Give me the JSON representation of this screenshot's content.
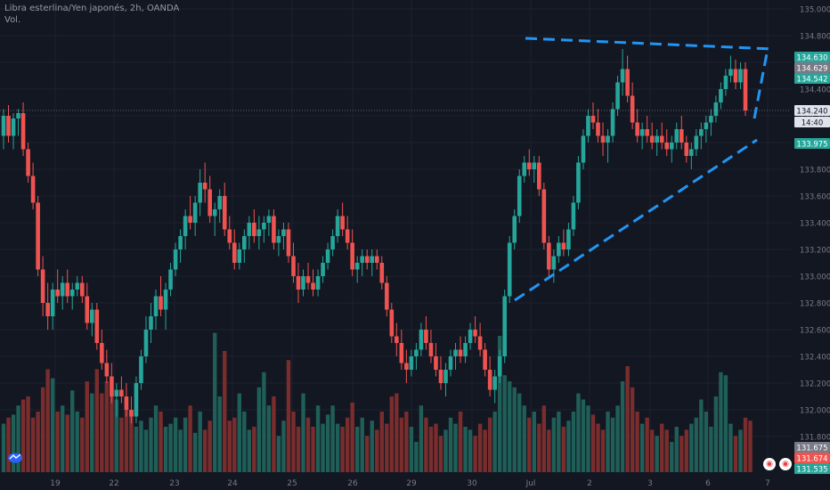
{
  "header": {
    "title": "Libra esterlina/Yen japonés, 2h, OANDA",
    "volume_label": "Vol."
  },
  "badges": {
    "last_price": "134.240",
    "countdown": "14:40"
  },
  "alert_icons": [
    "bell-alert-icon",
    "bell-alert-icon"
  ],
  "colors": {
    "background": "#131722",
    "up": "#26a69a",
    "down": "#ef5350",
    "trendline": "#2196f3"
  },
  "chart_data": {
    "type": "candlestick",
    "title": "Libra esterlina/Yen japonés, 2h, OANDA",
    "y_ticks": [
      "135.000",
      "134.800",
      "134.600",
      "134.400",
      "134.200",
      "134.000",
      "133.800",
      "133.600",
      "133.400",
      "133.200",
      "133.000",
      "132.800",
      "132.600",
      "132.400",
      "132.200",
      "132.000",
      "131.800"
    ],
    "x_ticks": [
      "19",
      "22",
      "23",
      "24",
      "25",
      "26",
      "29",
      "30",
      "Jul",
      "2",
      "3",
      "6",
      "7"
    ],
    "ylim": [
      131.5,
      135.05
    ],
    "price_labels": [
      {
        "value": 134.63,
        "text": "134.630",
        "color": "#26a69a"
      },
      {
        "value": 134.629,
        "text": "134.629",
        "color": "#787b86"
      },
      {
        "value": 134.542,
        "text": "134.542",
        "color": "#26a69a"
      },
      {
        "value": 133.975,
        "text": "133.975",
        "color": "#26a69a"
      },
      {
        "value": 131.675,
        "text": "131.675",
        "color": "#787b86"
      },
      {
        "value": 131.674,
        "text": "131.674",
        "color": "#ef5350"
      },
      {
        "value": 131.535,
        "text": "131.535",
        "color": "#26a69a"
      }
    ],
    "current_price": 134.24,
    "trendlines": [
      {
        "from": [
          "Jul",
          134.78
        ],
        "to": [
          "7",
          134.7
        ],
        "style": "dashed"
      },
      {
        "from": [
          "30",
          132.82
        ],
        "to": [
          "7",
          134.02
        ],
        "style": "dashed"
      },
      {
        "from": [
          "6",
          134.18
        ],
        "to": [
          "7",
          134.7
        ],
        "style": "dashed"
      }
    ],
    "candles": [
      [
        134.05,
        134.25,
        133.95,
        134.2
      ],
      [
        134.2,
        134.28,
        134.0,
        134.05
      ],
      [
        134.05,
        134.22,
        133.95,
        134.18
      ],
      [
        134.18,
        134.25,
        134.05,
        134.22
      ],
      [
        134.22,
        134.3,
        133.9,
        133.95
      ],
      [
        133.95,
        134.0,
        133.7,
        133.75
      ],
      [
        133.75,
        133.85,
        133.5,
        133.55
      ],
      [
        133.55,
        133.6,
        133.0,
        133.05
      ],
      [
        133.05,
        133.15,
        132.7,
        132.8
      ],
      [
        132.8,
        132.95,
        132.6,
        132.7
      ],
      [
        132.7,
        132.95,
        132.6,
        132.9
      ],
      [
        132.9,
        133.05,
        132.8,
        132.85
      ],
      [
        132.85,
        133.0,
        132.75,
        132.95
      ],
      [
        132.95,
        133.05,
        132.8,
        132.85
      ],
      [
        132.85,
        132.95,
        132.75,
        132.9
      ],
      [
        132.9,
        133.0,
        132.85,
        132.95
      ],
      [
        132.95,
        133.0,
        132.8,
        132.85
      ],
      [
        132.85,
        132.95,
        132.6,
        132.65
      ],
      [
        132.65,
        132.8,
        132.55,
        132.75
      ],
      [
        132.75,
        132.8,
        132.45,
        132.5
      ],
      [
        132.5,
        132.6,
        132.3,
        132.35
      ],
      [
        132.35,
        132.45,
        132.2,
        132.25
      ],
      [
        132.25,
        132.35,
        132.05,
        132.1
      ],
      [
        132.1,
        132.2,
        131.95,
        132.15
      ],
      [
        132.15,
        132.25,
        132.05,
        132.1
      ],
      [
        132.1,
        132.2,
        131.95,
        132.0
      ],
      [
        132.0,
        132.1,
        131.9,
        131.95
      ],
      [
        131.95,
        132.25,
        131.9,
        132.2
      ],
      [
        132.2,
        132.45,
        132.15,
        132.4
      ],
      [
        132.4,
        132.7,
        132.35,
        132.6
      ],
      [
        132.6,
        132.8,
        132.5,
        132.7
      ],
      [
        132.7,
        132.9,
        132.6,
        132.85
      ],
      [
        132.85,
        133.0,
        132.7,
        132.75
      ],
      [
        132.75,
        132.95,
        132.6,
        132.9
      ],
      [
        132.9,
        133.1,
        132.85,
        133.05
      ],
      [
        133.05,
        133.25,
        133.0,
        133.2
      ],
      [
        133.2,
        133.35,
        133.1,
        133.3
      ],
      [
        133.3,
        133.5,
        133.2,
        133.45
      ],
      [
        133.45,
        133.6,
        133.35,
        133.4
      ],
      [
        133.4,
        133.6,
        133.3,
        133.55
      ],
      [
        133.55,
        133.8,
        133.45,
        133.7
      ],
      [
        133.7,
        133.85,
        133.55,
        133.65
      ],
      [
        133.65,
        133.75,
        133.4,
        133.45
      ],
      [
        133.45,
        133.55,
        133.3,
        133.5
      ],
      [
        133.5,
        133.65,
        133.4,
        133.6
      ],
      [
        133.6,
        133.7,
        133.3,
        133.35
      ],
      [
        133.35,
        133.45,
        133.2,
        133.25
      ],
      [
        133.25,
        133.35,
        133.05,
        133.1
      ],
      [
        133.1,
        133.25,
        133.05,
        133.2
      ],
      [
        133.2,
        133.35,
        133.1,
        133.3
      ],
      [
        133.3,
        133.45,
        133.2,
        133.4
      ],
      [
        133.4,
        133.5,
        133.25,
        133.3
      ],
      [
        133.3,
        133.45,
        133.2,
        133.35
      ],
      [
        133.35,
        133.45,
        133.25,
        133.4
      ],
      [
        133.4,
        133.5,
        133.3,
        133.45
      ],
      [
        133.45,
        133.5,
        133.2,
        133.25
      ],
      [
        133.25,
        133.35,
        133.15,
        133.3
      ],
      [
        133.3,
        133.4,
        133.2,
        133.35
      ],
      [
        133.35,
        133.4,
        133.1,
        133.15
      ],
      [
        133.15,
        133.25,
        132.95,
        133.0
      ],
      [
        133.0,
        133.1,
        132.8,
        132.9
      ],
      [
        132.9,
        133.05,
        132.85,
        133.0
      ],
      [
        133.0,
        133.1,
        132.9,
        132.95
      ],
      [
        132.95,
        133.05,
        132.85,
        132.9
      ],
      [
        132.9,
        133.05,
        132.85,
        133.0
      ],
      [
        133.0,
        133.15,
        132.95,
        133.1
      ],
      [
        133.1,
        133.25,
        133.05,
        133.2
      ],
      [
        133.2,
        133.35,
        133.15,
        133.3
      ],
      [
        133.3,
        133.5,
        133.25,
        133.45
      ],
      [
        133.45,
        133.55,
        133.3,
        133.35
      ],
      [
        133.35,
        133.45,
        133.2,
        133.25
      ],
      [
        133.25,
        133.35,
        133.0,
        133.05
      ],
      [
        133.05,
        133.15,
        132.95,
        133.1
      ],
      [
        133.1,
        133.2,
        133.0,
        133.15
      ],
      [
        133.15,
        133.2,
        133.05,
        133.1
      ],
      [
        133.1,
        133.2,
        133.0,
        133.15
      ],
      [
        133.15,
        133.2,
        133.05,
        133.1
      ],
      [
        133.1,
        133.15,
        132.9,
        132.95
      ],
      [
        132.95,
        133.0,
        132.7,
        132.75
      ],
      [
        132.75,
        132.8,
        132.5,
        132.55
      ],
      [
        132.55,
        132.65,
        132.4,
        132.5
      ],
      [
        132.5,
        132.6,
        132.3,
        132.35
      ],
      [
        132.35,
        132.45,
        132.2,
        132.3
      ],
      [
        132.3,
        132.45,
        132.25,
        132.4
      ],
      [
        132.4,
        132.5,
        132.3,
        132.45
      ],
      [
        132.45,
        132.65,
        132.4,
        132.6
      ],
      [
        132.6,
        132.7,
        132.45,
        132.5
      ],
      [
        132.5,
        132.6,
        132.35,
        132.4
      ],
      [
        132.4,
        132.5,
        132.25,
        132.3
      ],
      [
        132.3,
        132.4,
        132.15,
        132.2
      ],
      [
        132.2,
        132.35,
        132.1,
        132.3
      ],
      [
        132.3,
        132.45,
        132.25,
        132.4
      ],
      [
        132.4,
        132.5,
        132.3,
        132.45
      ],
      [
        132.45,
        132.55,
        132.35,
        132.4
      ],
      [
        132.4,
        132.55,
        132.35,
        132.5
      ],
      [
        132.5,
        132.65,
        132.45,
        132.6
      ],
      [
        132.6,
        132.7,
        132.5,
        132.55
      ],
      [
        132.55,
        132.65,
        132.4,
        132.45
      ],
      [
        132.45,
        132.5,
        132.25,
        132.3
      ],
      [
        132.3,
        132.4,
        132.1,
        132.15
      ],
      [
        132.15,
        132.3,
        132.05,
        132.25
      ],
      [
        132.25,
        132.45,
        132.2,
        132.4
      ],
      [
        132.4,
        132.9,
        132.35,
        132.85
      ],
      [
        132.85,
        133.3,
        132.8,
        133.25
      ],
      [
        133.25,
        133.5,
        133.2,
        133.45
      ],
      [
        133.45,
        133.8,
        133.4,
        133.75
      ],
      [
        133.75,
        133.9,
        133.7,
        133.85
      ],
      [
        133.85,
        133.95,
        133.75,
        133.8
      ],
      [
        133.8,
        133.9,
        133.7,
        133.85
      ],
      [
        133.85,
        133.9,
        133.6,
        133.65
      ],
      [
        133.65,
        133.7,
        133.2,
        133.25
      ],
      [
        133.25,
        133.3,
        133.0,
        133.05
      ],
      [
        133.05,
        133.2,
        132.95,
        133.15
      ],
      [
        133.15,
        133.3,
        133.1,
        133.25
      ],
      [
        133.25,
        133.35,
        133.15,
        133.2
      ],
      [
        133.2,
        133.4,
        133.15,
        133.35
      ],
      [
        133.35,
        133.6,
        133.3,
        133.55
      ],
      [
        133.55,
        133.9,
        133.5,
        133.85
      ],
      [
        133.85,
        134.1,
        133.8,
        134.05
      ],
      [
        134.05,
        134.25,
        134.0,
        134.2
      ],
      [
        134.2,
        134.3,
        134.1,
        134.15
      ],
      [
        134.15,
        134.25,
        134.0,
        134.05
      ],
      [
        134.05,
        134.15,
        133.9,
        134.0
      ],
      [
        134.0,
        134.1,
        133.85,
        134.05
      ],
      [
        134.05,
        134.3,
        134.0,
        134.25
      ],
      [
        134.25,
        134.5,
        134.2,
        134.45
      ],
      [
        134.45,
        134.7,
        134.35,
        134.55
      ],
      [
        134.55,
        134.65,
        134.3,
        134.35
      ],
      [
        134.35,
        134.45,
        134.1,
        134.15
      ],
      [
        134.15,
        134.25,
        134.0,
        134.05
      ],
      [
        134.05,
        134.15,
        133.95,
        134.1
      ],
      [
        134.1,
        134.2,
        134.0,
        134.05
      ],
      [
        134.05,
        134.15,
        133.95,
        134.0
      ],
      [
        134.0,
        134.1,
        133.9,
        134.05
      ],
      [
        134.05,
        134.15,
        133.95,
        134.0
      ],
      [
        134.0,
        134.1,
        133.9,
        133.95
      ],
      [
        133.95,
        134.05,
        133.85,
        134.0
      ],
      [
        134.0,
        134.15,
        133.95,
        134.1
      ],
      [
        134.1,
        134.2,
        133.95,
        134.0
      ],
      [
        134.0,
        134.05,
        133.85,
        133.9
      ],
      [
        133.9,
        134.0,
        133.8,
        133.95
      ],
      [
        133.95,
        134.1,
        133.9,
        134.05
      ],
      [
        134.05,
        134.15,
        133.95,
        134.1
      ],
      [
        134.1,
        134.2,
        134.0,
        134.15
      ],
      [
        134.15,
        134.25,
        134.05,
        134.2
      ],
      [
        134.2,
        134.35,
        134.15,
        134.3
      ],
      [
        134.3,
        134.45,
        134.25,
        134.4
      ],
      [
        134.4,
        134.55,
        134.35,
        134.5
      ],
      [
        134.5,
        134.65,
        134.45,
        134.55
      ],
      [
        134.55,
        134.62,
        134.4,
        134.45
      ],
      [
        134.45,
        134.6,
        134.4,
        134.55
      ],
      [
        134.55,
        134.6,
        134.2,
        134.24
      ]
    ],
    "volumes": [
      0.16,
      0.18,
      0.19,
      0.22,
      0.24,
      0.25,
      0.18,
      0.2,
      0.28,
      0.34,
      0.31,
      0.2,
      0.22,
      0.19,
      0.27,
      0.2,
      0.18,
      0.3,
      0.26,
      0.34,
      0.26,
      0.3,
      0.26,
      0.24,
      0.18,
      0.24,
      0.2,
      0.15,
      0.17,
      0.14,
      0.18,
      0.22,
      0.2,
      0.15,
      0.16,
      0.18,
      0.14,
      0.18,
      0.22,
      0.13,
      0.2,
      0.14,
      0.17,
      0.46,
      0.25,
      0.4,
      0.17,
      0.18,
      0.26,
      0.2,
      0.14,
      0.15,
      0.28,
      0.33,
      0.22,
      0.25,
      0.12,
      0.17,
      0.37,
      0.2,
      0.15,
      0.26,
      0.18,
      0.15,
      0.22,
      0.16,
      0.19,
      0.22,
      0.16,
      0.15,
      0.18,
      0.23,
      0.15,
      0.18,
      0.12,
      0.17,
      0.14,
      0.2,
      0.16,
      0.25,
      0.26,
      0.18,
      0.2,
      0.15,
      0.1,
      0.22,
      0.18,
      0.15,
      0.16,
      0.12,
      0.14,
      0.18,
      0.16,
      0.2,
      0.15,
      0.14,
      0.12,
      0.16,
      0.14,
      0.18,
      0.2,
      0.45,
      0.32,
      0.3,
      0.28,
      0.26,
      0.22,
      0.18,
      0.2,
      0.16,
      0.22,
      0.14,
      0.18,
      0.2,
      0.15,
      0.17,
      0.2,
      0.26,
      0.24,
      0.22,
      0.19,
      0.16,
      0.14,
      0.2,
      0.18,
      0.22,
      0.3,
      0.35,
      0.28,
      0.2,
      0.16,
      0.18,
      0.14,
      0.12,
      0.16,
      0.14,
      0.1,
      0.15,
      0.12,
      0.14,
      0.16,
      0.18,
      0.24,
      0.2,
      0.15,
      0.25,
      0.33,
      0.32,
      0.16,
      0.12,
      0.14,
      0.18,
      0.17
    ]
  }
}
